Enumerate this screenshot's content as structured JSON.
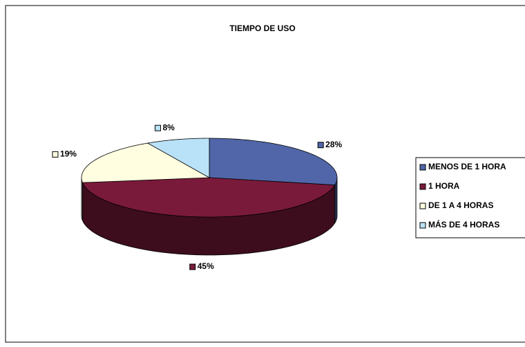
{
  "chart_data": {
    "type": "pie3d",
    "title": "TIEMPO DE USO",
    "categories": [
      "MENOS DE 1 HORA",
      "1 HORA",
      "DE 1 A 4 HORAS",
      "MÁS DE 4 HORAS"
    ],
    "values": [
      28,
      45,
      19,
      8
    ],
    "value_labels": [
      "28%",
      "45%",
      "19%",
      "8%"
    ],
    "colors": [
      "#5066a8",
      "#7a1a3a",
      "#fffee0",
      "#b9e2f8"
    ],
    "legend": "right"
  }
}
